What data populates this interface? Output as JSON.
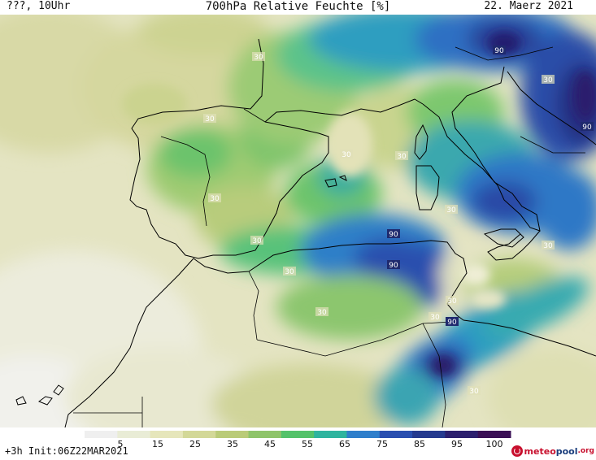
{
  "header": {
    "left": "???, 10Uhr",
    "title": "700hPa Relative Feuchte [%]",
    "date": "22. Maerz 2021"
  },
  "footer": {
    "run_info": "+3h Init:06Z22MAR2021"
  },
  "colorbar": {
    "ticks": [
      "5",
      "15",
      "25",
      "35",
      "45",
      "55",
      "65",
      "75",
      "85",
      "95",
      "100"
    ],
    "colors": [
      "#efefef",
      "#e9ecd6",
      "#e6e6bb",
      "#d3d898",
      "#bacb78",
      "#8fc46a",
      "#54c26a",
      "#2fb49f",
      "#2f7fcb",
      "#2a4fb0",
      "#253a8f",
      "#2c1f6e",
      "#3a0f55"
    ]
  },
  "contour_labels": [
    {
      "text": "30",
      "kind": "30"
    },
    {
      "text": "30",
      "kind": "30"
    },
    {
      "text": "30",
      "kind": "30"
    },
    {
      "text": "30",
      "kind": "30"
    },
    {
      "text": "30",
      "kind": "30"
    },
    {
      "text": "30",
      "kind": "30"
    },
    {
      "text": "30",
      "kind": "30"
    },
    {
      "text": "30",
      "kind": "30"
    },
    {
      "text": "30",
      "kind": "30"
    },
    {
      "text": "30",
      "kind": "30"
    },
    {
      "text": "30",
      "kind": "30"
    },
    {
      "text": "30",
      "kind": "30"
    },
    {
      "text": "30",
      "kind": "30"
    },
    {
      "text": "30",
      "kind": "30"
    },
    {
      "text": "90",
      "kind": "90"
    },
    {
      "text": "90",
      "kind": "90"
    },
    {
      "text": "90",
      "kind": "90"
    },
    {
      "text": "90",
      "kind": "90"
    },
    {
      "text": "90",
      "kind": "90"
    }
  ],
  "logo": {
    "part_a": "meteo",
    "part_b": "pool",
    "part_c": ".org"
  }
}
